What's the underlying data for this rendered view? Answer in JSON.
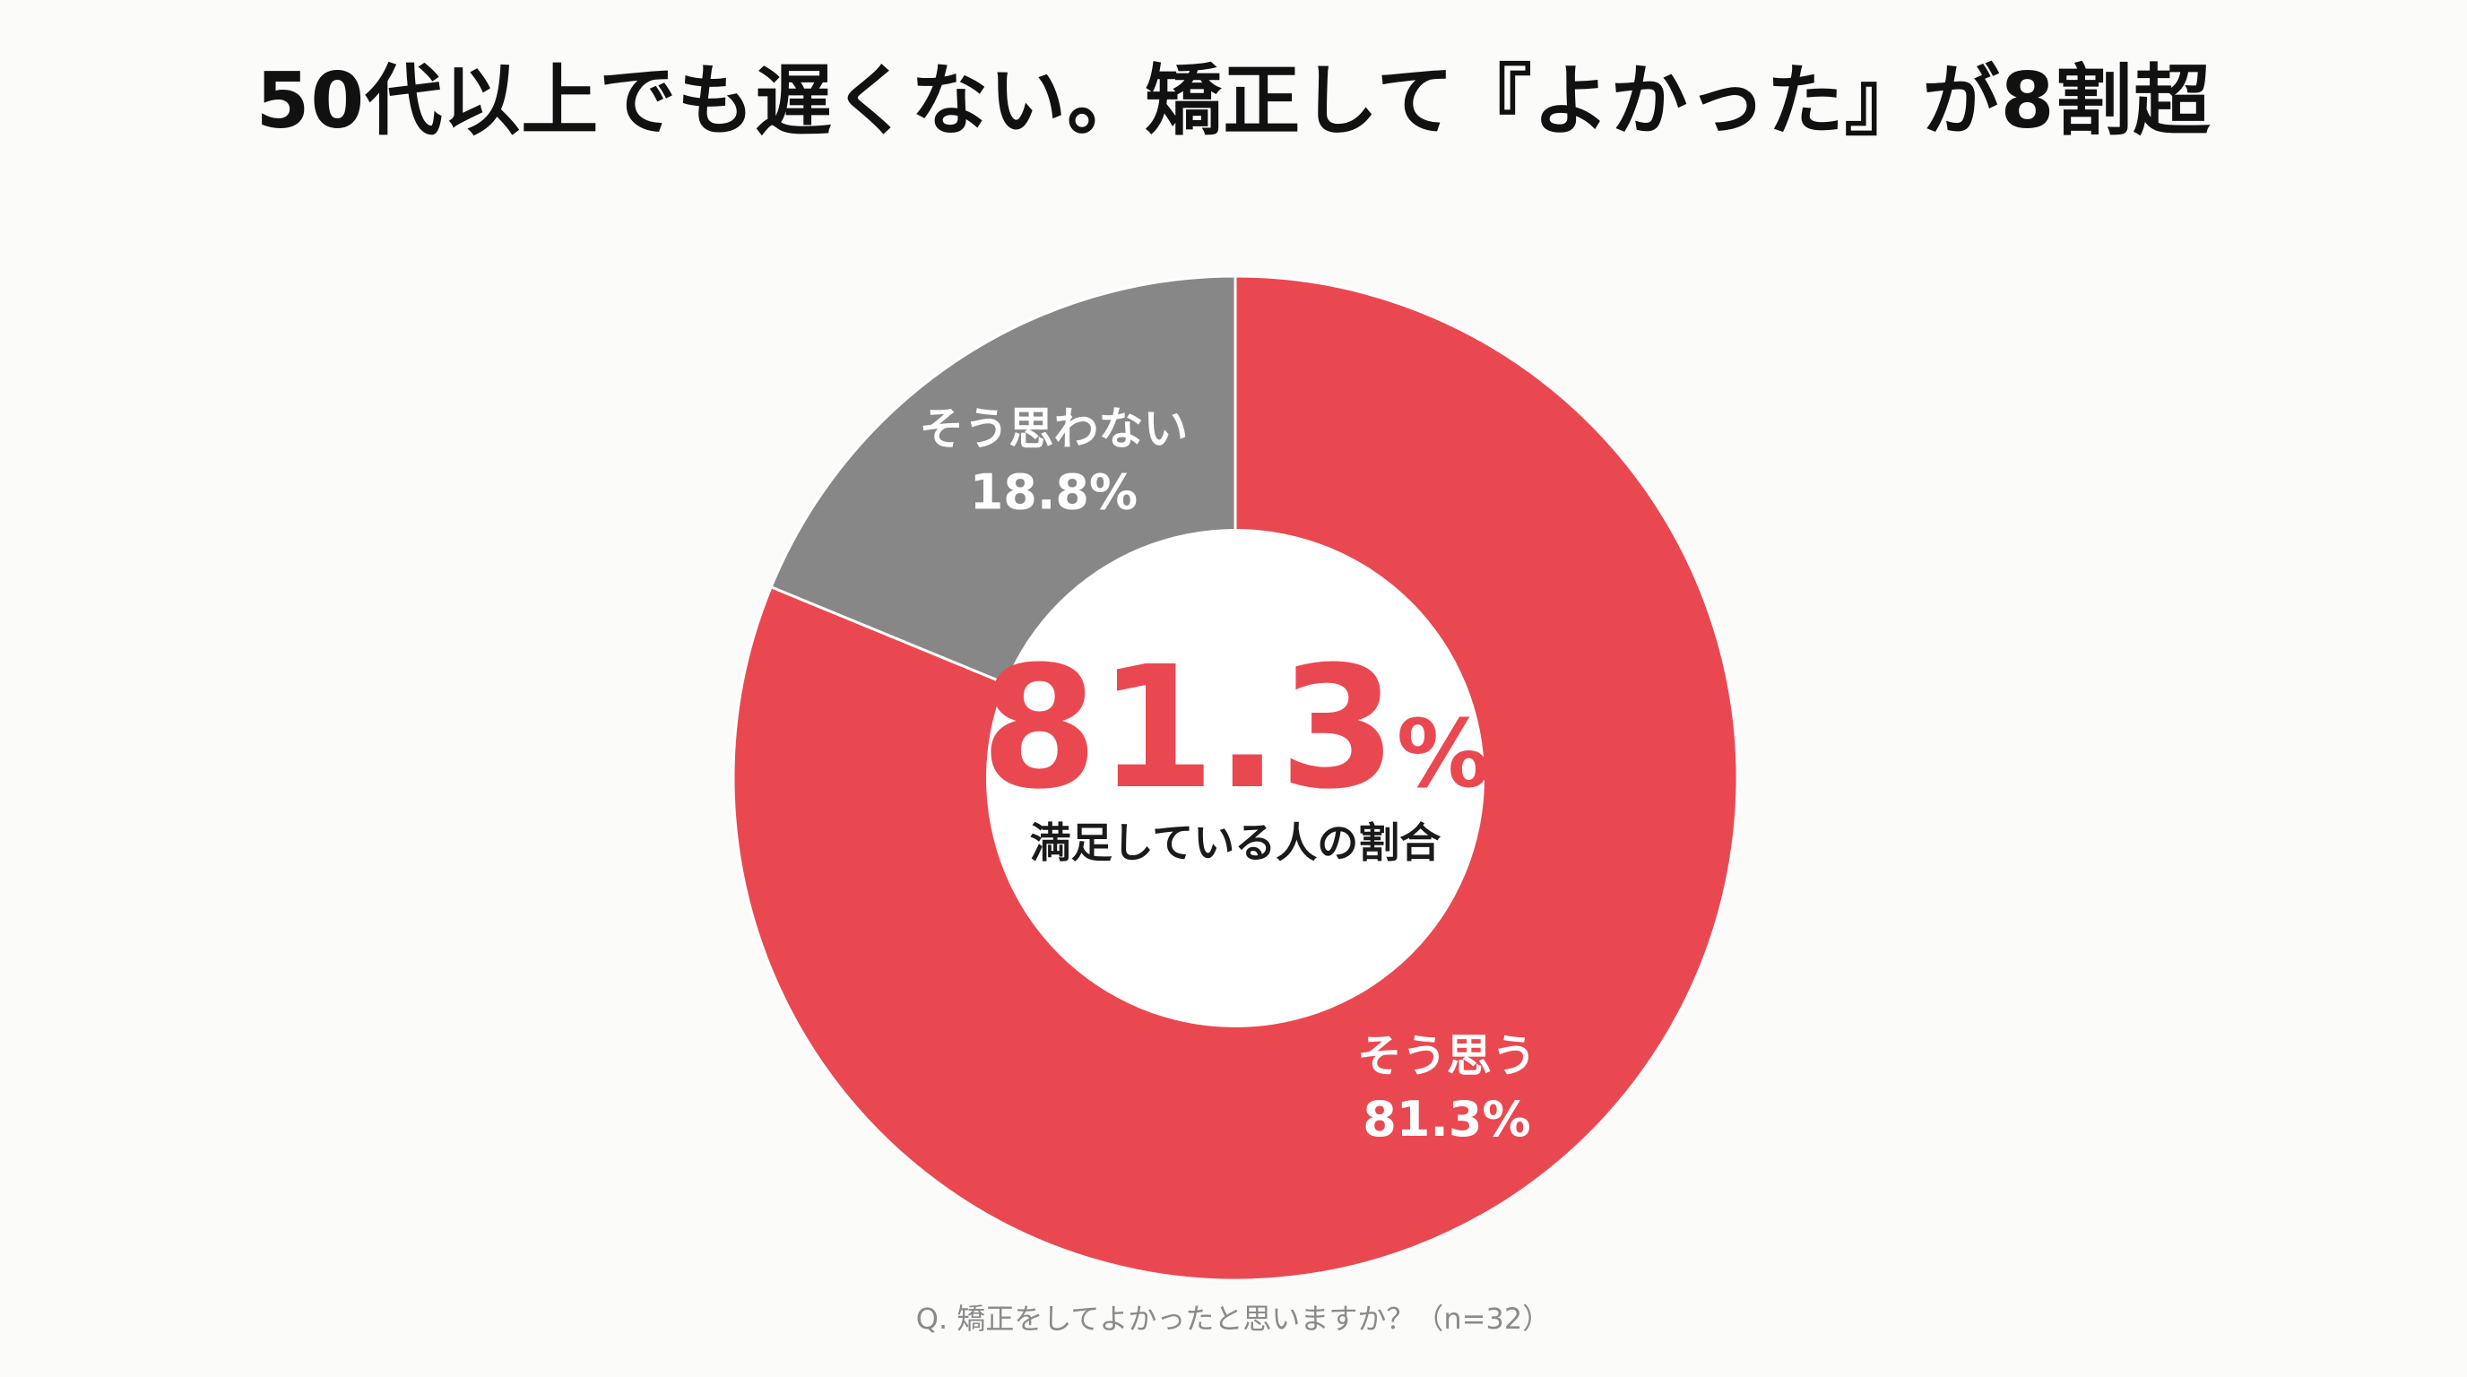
{
  "chart_data": {
    "type": "pie",
    "title": "50代以上でも遅くない。矯正して『よかった』が8割超",
    "slices": [
      {
        "label": "そう思う",
        "value": 81.3,
        "display": "81.3%",
        "color": "#ea4850"
      },
      {
        "label": "そう思わない",
        "value": 18.8,
        "display": "18.8%",
        "color": "#878787"
      }
    ],
    "center": {
      "value": "81.3",
      "unit": "%",
      "label": "満足している人の割合",
      "value_color": "#ea4850"
    },
    "footnote": "Q. 矯正をしてよかったと思いますか？（n=32）"
  }
}
